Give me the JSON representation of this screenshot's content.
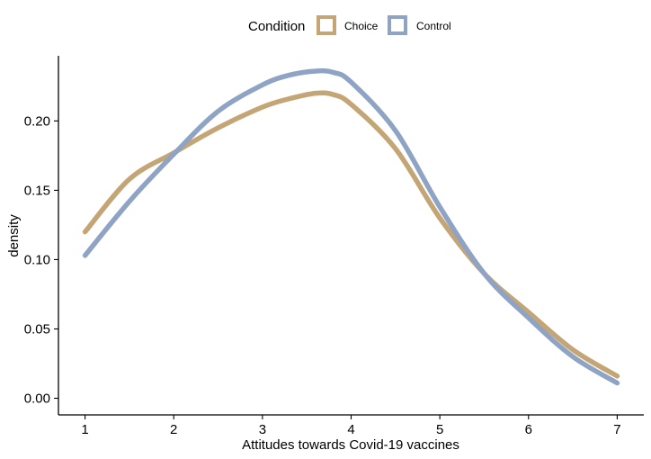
{
  "chart_data": {
    "type": "line",
    "title": "",
    "xlabel": "Attitudes towards Covid-19 vaccines",
    "ylabel": "density",
    "xlim": [
      0.7,
      7.3
    ],
    "ylim": [
      -0.012,
      0.247
    ],
    "x_ticks": [
      1,
      2,
      3,
      4,
      5,
      6,
      7
    ],
    "y_ticks": [
      0.0,
      0.05,
      0.1,
      0.15,
      0.2
    ],
    "y_tick_labels": [
      "0.00",
      "0.05",
      "0.10",
      "0.15",
      "0.20"
    ],
    "grid": false,
    "legend": {
      "title": "Condition",
      "placement": "top"
    },
    "series": [
      {
        "name": "Choice",
        "color": "#c4a575",
        "x": [
          1.0,
          1.5,
          2.0,
          2.5,
          3.0,
          3.3,
          3.6,
          3.8,
          4.0,
          4.5,
          5.0,
          5.5,
          6.0,
          6.5,
          7.0
        ],
        "y": [
          0.12,
          0.158,
          0.177,
          0.195,
          0.21,
          0.216,
          0.22,
          0.219,
          0.212,
          0.18,
          0.13,
          0.09,
          0.062,
          0.035,
          0.016
        ]
      },
      {
        "name": "Control",
        "color": "#8fa4c4",
        "x": [
          1.0,
          1.5,
          2.0,
          2.5,
          3.0,
          3.3,
          3.6,
          3.8,
          4.0,
          4.5,
          5.0,
          5.5,
          6.0,
          6.5,
          7.0
        ],
        "y": [
          0.103,
          0.142,
          0.176,
          0.207,
          0.226,
          0.233,
          0.236,
          0.235,
          0.228,
          0.193,
          0.138,
          0.09,
          0.058,
          0.03,
          0.011
        ]
      }
    ]
  }
}
